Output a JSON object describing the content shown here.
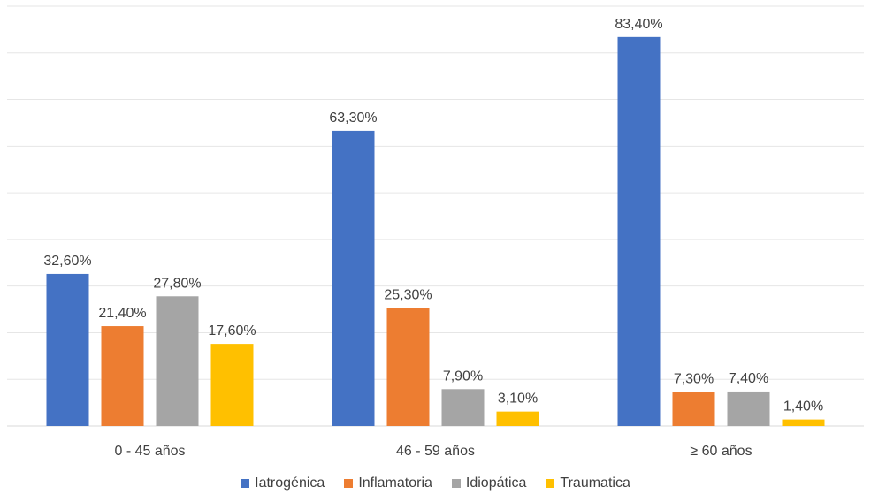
{
  "chart_data": {
    "type": "bar",
    "categories": [
      "0 - 45 años",
      "46 - 59 años",
      "≥ 60 años"
    ],
    "series": [
      {
        "name": "Iatrogénica",
        "color": "#4472C4",
        "values": [
          32.6,
          63.3,
          83.4
        ],
        "labels": [
          "32,60%",
          "63,30%",
          "83,40%"
        ]
      },
      {
        "name": "Inflamatoria",
        "color": "#ED7D31",
        "values": [
          21.4,
          25.3,
          7.3
        ],
        "labels": [
          "21,40%",
          "25,30%",
          "7,30%"
        ]
      },
      {
        "name": "Idiopática",
        "color": "#A5A5A5",
        "values": [
          27.8,
          7.9,
          7.4
        ],
        "labels": [
          "27,80%",
          "7,90%",
          "7,40%"
        ]
      },
      {
        "name": "Traumatica",
        "color": "#FFC000",
        "values": [
          17.6,
          3.1,
          1.4
        ],
        "labels": [
          "17,60%",
          "3,10%",
          "1,40%"
        ]
      }
    ],
    "ylim": [
      0,
      90
    ],
    "grid": true,
    "legend_position": "bottom"
  }
}
